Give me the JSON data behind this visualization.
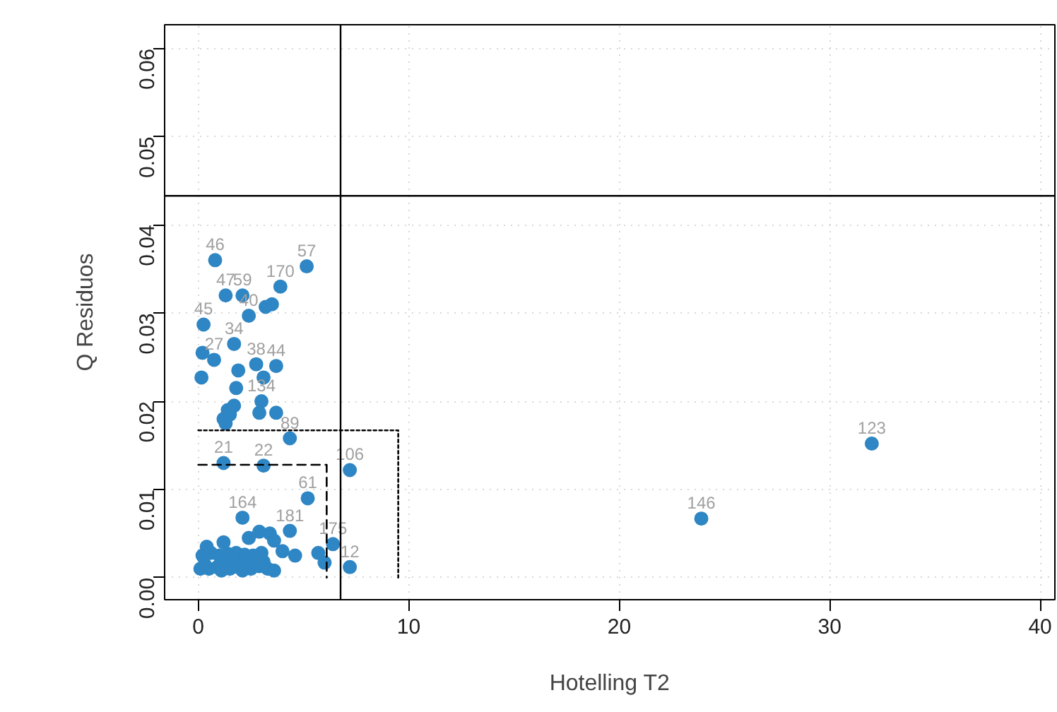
{
  "chart_data": {
    "type": "scatter",
    "xlabel": "Hotelling T2",
    "ylabel": "Q Residuos",
    "xlim": [
      -1.6,
      40.7
    ],
    "ylim": [
      -0.0025,
      0.0627
    ],
    "xticks": [
      0,
      10,
      20,
      30,
      40
    ],
    "yticks": [
      {
        "value": 0,
        "label": "0.00"
      },
      {
        "value": 0.01,
        "label": "0.01"
      },
      {
        "value": 0.02,
        "label": "0.02"
      },
      {
        "value": 0.03,
        "label": "0.03"
      },
      {
        "value": 0.04,
        "label": "0.04"
      },
      {
        "value": 0.05,
        "label": "0.05"
      },
      {
        "value": 0.06,
        "label": "0.06"
      }
    ],
    "grid": true,
    "series": [
      {
        "marker": "circle",
        "color": "#2f86c4",
        "x": [
          0.8,
          5.15,
          3.9,
          1.3,
          2.1,
          0.25,
          2.4,
          0.75,
          1.7,
          3.7,
          2.75,
          3.0,
          4.35,
          1.2,
          3.1,
          7.2,
          5.2,
          23.9,
          32.0,
          7.2,
          6.4,
          4.35,
          2.1,
          3.5,
          3.2,
          0.2,
          0.15,
          1.9,
          3.1,
          2.9,
          3.7,
          1.4,
          1.2,
          1.5,
          1.3,
          1.8,
          1.7,
          6.0,
          5.7,
          0.1,
          0.3,
          0.5,
          0.9,
          1.1,
          1.3,
          1.5,
          1.7,
          1.9,
          2.1,
          2.3,
          2.5,
          2.9,
          3.1,
          3.3,
          3.6,
          0.2,
          0.6,
          1.0,
          1.4,
          1.8,
          2.2,
          2.6,
          3.0,
          4.0,
          4.6,
          0.4,
          1.2,
          2.4,
          3.4,
          2.9,
          3.6
        ],
        "values": [
          0.036,
          0.0353,
          0.033,
          0.032,
          0.032,
          0.0287,
          0.0297,
          0.0247,
          0.0265,
          0.024,
          0.0242,
          0.02,
          0.0158,
          0.013,
          0.0127,
          0.0122,
          0.009,
          0.0067,
          0.0152,
          0.0012,
          0.0038,
          0.0053,
          0.0068,
          0.031,
          0.0307,
          0.0255,
          0.0227,
          0.0235,
          0.0227,
          0.0187,
          0.0187,
          0.019,
          0.018,
          0.0185,
          0.0175,
          0.0215,
          0.0195,
          0.0017,
          0.0028,
          0.001,
          0.0015,
          0.001,
          0.0012,
          0.0008,
          0.0018,
          0.001,
          0.0022,
          0.0012,
          0.0008,
          0.0016,
          0.001,
          0.0013,
          0.0018,
          0.001,
          0.0008,
          0.0025,
          0.0028,
          0.0025,
          0.0027,
          0.0028,
          0.0026,
          0.0025,
          0.0028,
          0.003,
          0.0025,
          0.0035,
          0.004,
          0.0045,
          0.005,
          0.0052,
          0.0042
        ]
      },
      {
        "type": "line",
        "color": "#000000",
        "line_style": "dotted",
        "x": [
          0,
          9.5,
          9.5
        ],
        "values": [
          0.0167,
          0.0167,
          0
        ]
      },
      {
        "type": "line",
        "color": "#000000",
        "line_style": "dashed",
        "x": [
          0,
          6.1,
          6.1
        ],
        "values": [
          0.0128,
          0.0128,
          0
        ]
      }
    ],
    "ref_lines": [
      {
        "axis": "x",
        "value": 6.76,
        "color": "#000000"
      },
      {
        "axis": "y",
        "value": 0.0433,
        "color": "#000000"
      }
    ],
    "annotations": [
      {
        "text": "46",
        "x": 0.8,
        "y": 0.036
      },
      {
        "text": "57",
        "x": 5.15,
        "y": 0.0353
      },
      {
        "text": "170",
        "x": 3.9,
        "y": 0.033
      },
      {
        "text": "47",
        "x": 1.3,
        "y": 0.032
      },
      {
        "text": "59",
        "x": 2.1,
        "y": 0.032
      },
      {
        "text": "45",
        "x": 0.25,
        "y": 0.0287
      },
      {
        "text": "40",
        "x": 2.4,
        "y": 0.0297
      },
      {
        "text": "27",
        "x": 0.75,
        "y": 0.0247
      },
      {
        "text": "34",
        "x": 1.7,
        "y": 0.0265
      },
      {
        "text": "44",
        "x": 3.7,
        "y": 0.024
      },
      {
        "text": "38",
        "x": 2.75,
        "y": 0.0242
      },
      {
        "text": "134",
        "x": 3.0,
        "y": 0.02
      },
      {
        "text": "89",
        "x": 4.35,
        "y": 0.0158
      },
      {
        "text": "21",
        "x": 1.2,
        "y": 0.013
      },
      {
        "text": "22",
        "x": 3.1,
        "y": 0.0127
      },
      {
        "text": "106",
        "x": 7.2,
        "y": 0.0122
      },
      {
        "text": "61",
        "x": 5.2,
        "y": 0.009
      },
      {
        "text": "146",
        "x": 23.9,
        "y": 0.0067
      },
      {
        "text": "123",
        "x": 32.0,
        "y": 0.0152
      },
      {
        "text": "12",
        "x": 7.2,
        "y": 0.0012
      },
      {
        "text": "175",
        "x": 6.4,
        "y": 0.0038
      },
      {
        "text": "181",
        "x": 4.35,
        "y": 0.0053
      },
      {
        "text": "164",
        "x": 2.1,
        "y": 0.0068
      }
    ]
  }
}
